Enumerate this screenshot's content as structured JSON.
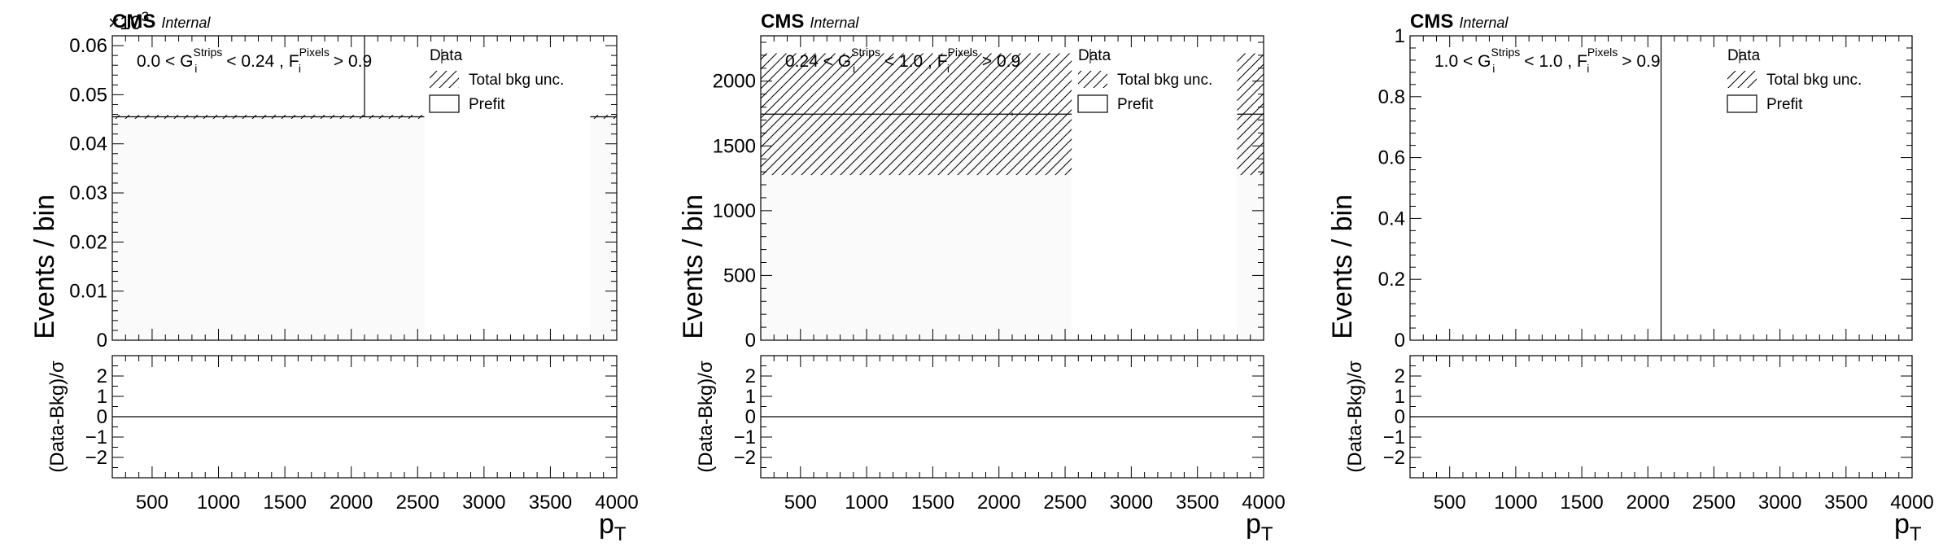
{
  "experiment": "CMS",
  "label": "Internal",
  "legend": {
    "data": "Data",
    "unc": "Total bkg unc.",
    "prefit": "Prefit"
  },
  "x_axis": {
    "label_main": "p",
    "label_sub": "T",
    "range": [
      200,
      4000
    ],
    "ticks": [
      500,
      1000,
      1500,
      2000,
      2500,
      3000,
      3500,
      4000
    ],
    "minor_step": 100
  },
  "y_axis_label": "Events / bin",
  "ratio": {
    "ylabel": "(Data-Bkg)/σ",
    "ylim": [
      -3,
      3
    ],
    "ticks": [
      -2,
      -1,
      0,
      1,
      2
    ],
    "line_value": 0
  },
  "colors": {
    "fill": "#fafafa",
    "hatch": "#000000",
    "axis": "#000000",
    "text": "#000000"
  },
  "chart_data": [
    {
      "type": "bar",
      "cut_label": {
        "g_low": "0.0",
        "g_high": "0.24",
        "f_cut": "0.9"
      },
      "exponent_label": {
        "base": "×10",
        "exp": "3"
      },
      "ylim": [
        0,
        0.062
      ],
      "ticks": [
        0,
        0.01,
        0.02,
        0.03,
        0.04,
        0.05,
        0.06
      ],
      "tick_labels": [
        "0",
        "0.01",
        "0.02",
        "0.03",
        "0.04",
        "0.05",
        "0.06"
      ],
      "minor_step": 0.002,
      "bins": [
        [
          200,
          2550,
          0.0455
        ],
        [
          3800,
          4000,
          0.0455
        ]
      ],
      "unc_half": 0.0004,
      "data_points": [
        {
          "x": 2100,
          "y": 0.0455,
          "yerr_hi": 0.02,
          "yerr_lo": 0.0
        }
      ]
    },
    {
      "type": "bar",
      "cut_label": {
        "g_low": "0.24",
        "g_high": "1.0",
        "f_cut": "0.9"
      },
      "ylim": [
        0,
        2350
      ],
      "ticks": [
        0,
        500,
        1000,
        1500,
        2000
      ],
      "tick_labels": [
        "0",
        "500",
        "1000",
        "1500",
        "2000"
      ],
      "minor_step": 100,
      "bins": [
        [
          200,
          2550,
          1745
        ],
        [
          3800,
          4000,
          1745
        ]
      ],
      "unc_half": 470,
      "data_points": [
        {
          "x": 2100,
          "y": 1745,
          "yerr_hi": 12,
          "yerr_lo": 12
        }
      ]
    },
    {
      "type": "bar",
      "cut_label": {
        "g_low": "1.0",
        "g_high": "1.0",
        "f_cut": "0.9"
      },
      "ylim": [
        0,
        1
      ],
      "ticks": [
        0,
        0.2,
        0.4,
        0.6,
        0.8,
        1
      ],
      "tick_labels": [
        "0",
        "0.2",
        "0.4",
        "0.6",
        "0.8",
        "1"
      ],
      "minor_step": 0.04,
      "bins": [],
      "unc_half": 0,
      "data_points": [
        {
          "x": 2100,
          "y": 0,
          "yerr_hi": 1.0,
          "yerr_lo": 0
        }
      ]
    }
  ]
}
